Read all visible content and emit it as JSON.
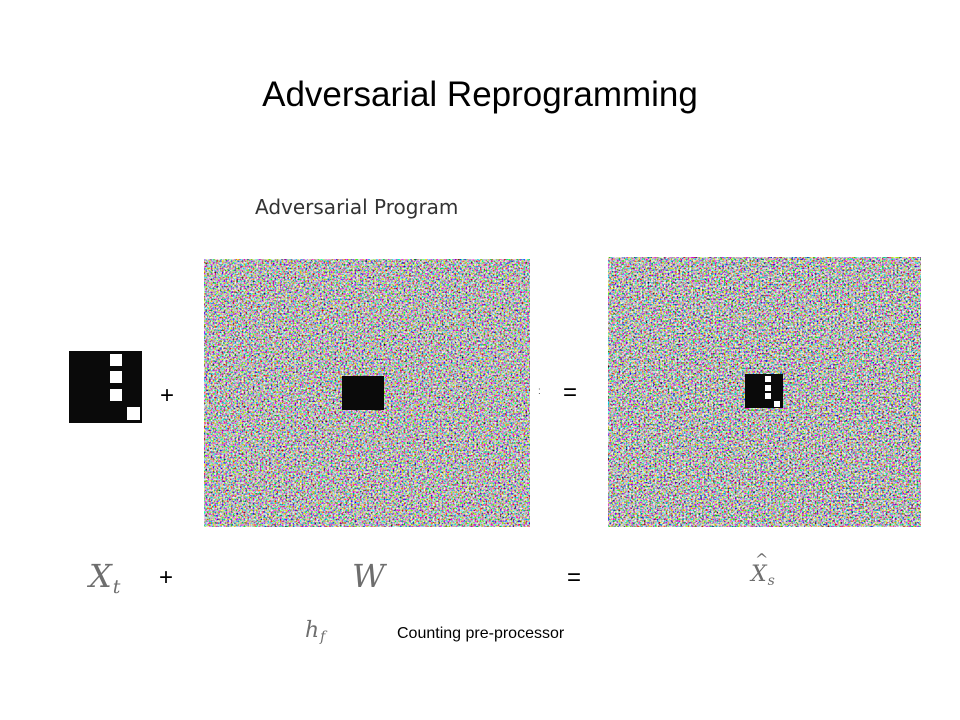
{
  "slide": {
    "title": "Adversarial Reprogramming",
    "program_label": "Adversarial Program",
    "caption": "Counting pre-processor"
  },
  "equation_top": {
    "plus": "+",
    "equals": "="
  },
  "equation_bottom": {
    "term_x": "X",
    "term_x_sub": "t",
    "plus": "+",
    "term_w": "W",
    "equals": "=",
    "term_xs": "X",
    "term_xs_sub": "s",
    "term_h": "h",
    "term_h_sub": "f"
  },
  "icons": {
    "target_image": "counting-squares-icon",
    "adversarial_program": "noise-pattern-image",
    "reprogrammed_image": "noise-pattern-with-target-image"
  },
  "colors": {
    "background": "#ffffff",
    "text": "#000000",
    "math": "#6e6e6e",
    "square": "#0a0a0a"
  }
}
